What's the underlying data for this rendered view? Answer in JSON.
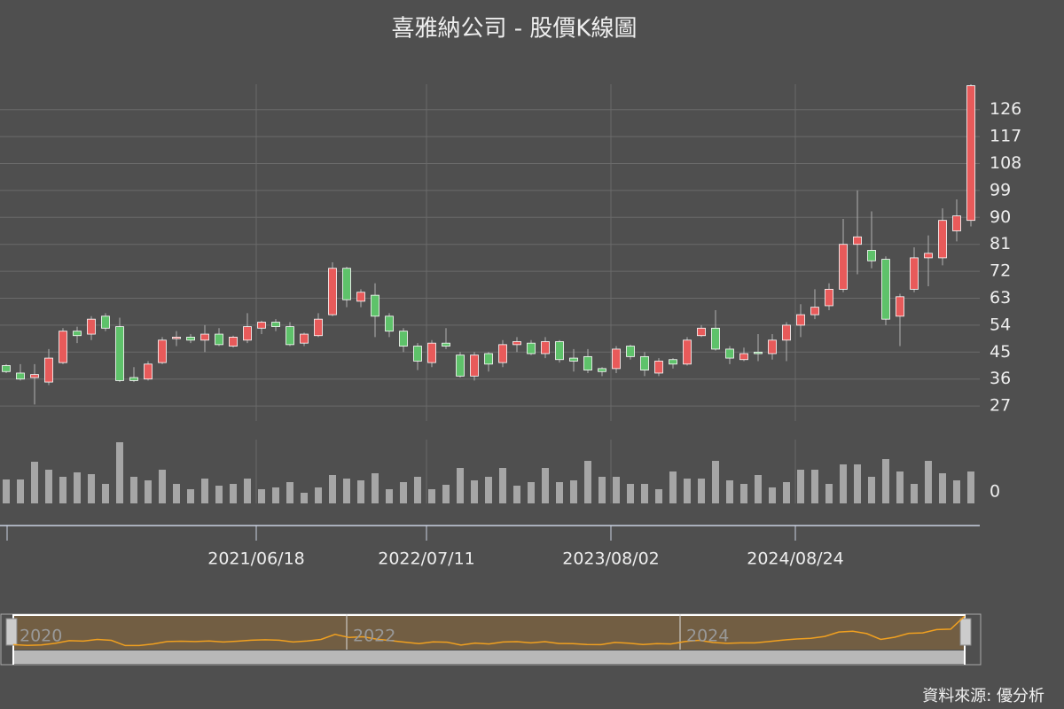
{
  "chart_data": {
    "type": "candlestick",
    "title": "喜雅納公司 - 股價K線圖",
    "categories": [
      null,
      null,
      null,
      null,
      null,
      null,
      null,
      null,
      null,
      null,
      null,
      null,
      null,
      null,
      null,
      null,
      null,
      null,
      "2021/06/18",
      null,
      null,
      null,
      null,
      null,
      null,
      null,
      null,
      null,
      null,
      null,
      "2022/07/11",
      null,
      null,
      null,
      null,
      null,
      null,
      null,
      null,
      null,
      null,
      null,
      null,
      "2023/08/02",
      null,
      null,
      null,
      null,
      null,
      null,
      null,
      null,
      null,
      null,
      null,
      null,
      "2024/08/24",
      null,
      null,
      null,
      null,
      null,
      null,
      null,
      null,
      null,
      null,
      null,
      null
    ],
    "open": [
      40.5,
      38,
      36.5,
      35,
      41.5,
      52,
      51,
      57,
      53.5,
      36.5,
      36,
      41.5,
      49.5,
      50,
      49,
      51,
      47,
      49,
      53,
      55,
      53.5,
      48,
      50.5,
      57.5,
      73,
      62,
      64,
      57,
      52,
      47,
      41.5,
      48,
      44,
      37,
      44.5,
      41.5,
      47.5,
      48,
      44.5,
      48.5,
      43,
      43.5,
      39.5,
      39.5,
      47,
      43.5,
      38,
      42.5,
      41,
      50.5,
      53,
      46,
      42.5,
      45,
      44.5,
      49,
      54,
      57.5,
      60.5,
      66,
      81,
      79,
      76,
      57,
      66,
      76.5,
      76.5,
      85.5,
      89
    ],
    "high": [
      41,
      41,
      41,
      46,
      53,
      53.5,
      57,
      58,
      56.5,
      40,
      42,
      50,
      52,
      51,
      54,
      53,
      50.5,
      58,
      55.5,
      56,
      55,
      51.5,
      58,
      75,
      73.5,
      66,
      68,
      58,
      53,
      48,
      49,
      53,
      45,
      45,
      45,
      49,
      50,
      49,
      50,
      49,
      46,
      46,
      40,
      47,
      47.5,
      45,
      43,
      43,
      50,
      54,
      59,
      47,
      46.5,
      51,
      51,
      55,
      61,
      66,
      68,
      89.5,
      99,
      92,
      77,
      64.5,
      80,
      84,
      93,
      96,
      134.5
    ],
    "low": [
      38,
      35.5,
      27.5,
      34,
      41,
      48,
      49,
      52,
      35,
      35,
      35.5,
      41,
      47,
      48,
      45,
      47,
      46.5,
      48,
      51,
      52,
      47,
      47,
      50,
      57,
      60,
      60,
      50,
      50,
      45,
      39,
      40,
      46,
      36.5,
      35.5,
      38.5,
      40,
      45,
      44,
      43,
      41.5,
      38.5,
      38,
      37,
      38,
      42.5,
      37,
      37,
      39.5,
      40.5,
      50,
      45.5,
      41,
      42,
      42,
      42.5,
      42,
      50,
      56,
      59,
      65,
      71,
      73,
      54,
      47,
      65,
      67,
      74,
      82,
      87
    ],
    "close": [
      38.5,
      36,
      37.5,
      43,
      52,
      50.5,
      56,
      53,
      35.5,
      35.5,
      41,
      49,
      50,
      49,
      51,
      47.5,
      50,
      53.5,
      55,
      53.5,
      47.5,
      51,
      56,
      73,
      62.5,
      65,
      57,
      52,
      47,
      42,
      48,
      47,
      37,
      44,
      41,
      47.5,
      48.5,
      44.5,
      48.5,
      42.5,
      42,
      39,
      38.5,
      46,
      43.5,
      39,
      42,
      41,
      49,
      53,
      46,
      43,
      44.5,
      44.5,
      49,
      54,
      57.5,
      60,
      66,
      81,
      83.5,
      75.5,
      56,
      63.5,
      76.5,
      78,
      89,
      90.5,
      134
    ],
    "volume": [
      27,
      27,
      47,
      38,
      30,
      35,
      33,
      22,
      69,
      30,
      26,
      38,
      22,
      16,
      28,
      20,
      22,
      28,
      16,
      18,
      24,
      12,
      18,
      32,
      28,
      26,
      34,
      16,
      24,
      30,
      16,
      21,
      40,
      26,
      30,
      40,
      20,
      24,
      40,
      24,
      26,
      48,
      30,
      30,
      22,
      22,
      16,
      36,
      28,
      28,
      48,
      26,
      22,
      32,
      18,
      24,
      38,
      38,
      22,
      44,
      44,
      30,
      50,
      36,
      22,
      48,
      34,
      26,
      36
    ],
    "ylim": [
      22,
      134.5
    ],
    "yticks": [
      27,
      36,
      45,
      54,
      63,
      72,
      81,
      90,
      99,
      108,
      117,
      126
    ],
    "volume_ylim": [
      0,
      72
    ],
    "volume_yticks": [
      0
    ],
    "grid": true,
    "up_color": "#e85a5a",
    "down_color": "#5ec26a",
    "volume_color": "#a6a6a6",
    "navigator_color": "#f0a020",
    "navigator": {
      "labels": [
        "2020",
        "2022",
        "2024"
      ]
    },
    "source": "資料來源: 優分析"
  }
}
